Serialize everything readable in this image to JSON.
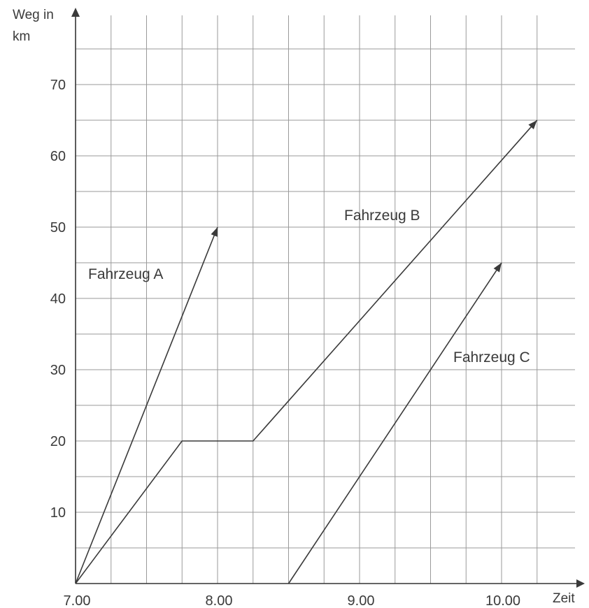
{
  "chart_data": {
    "type": "line",
    "ylabel_lines": [
      "Weg in",
      "km"
    ],
    "xlabel": "Zeit",
    "x_ticks": [
      {
        "value": 7,
        "label": "7.00"
      },
      {
        "value": 8,
        "label": "8.00"
      },
      {
        "value": 9,
        "label": "9.00"
      },
      {
        "value": 10,
        "label": "10.00"
      }
    ],
    "y_ticks": [
      {
        "value": 10,
        "label": "10"
      },
      {
        "value": 20,
        "label": "20"
      },
      {
        "value": 30,
        "label": "30"
      },
      {
        "value": 40,
        "label": "40"
      },
      {
        "value": 50,
        "label": "50"
      },
      {
        "value": 60,
        "label": "60"
      },
      {
        "value": 70,
        "label": "70"
      }
    ],
    "xlim": [
      7,
      10.5
    ],
    "ylim": [
      0,
      75
    ],
    "grid": true,
    "x_grid_step_hours": 0.25,
    "y_grid_step_km": 5,
    "series": [
      {
        "name": "Fahrzeug A",
        "x": [
          7,
          8
        ],
        "y": [
          0,
          50
        ],
        "arrow": true
      },
      {
        "name": "Fahrzeug B",
        "x": [
          7,
          7.75,
          8.25,
          10.25
        ],
        "y": [
          0,
          20,
          20,
          65
        ],
        "arrow": true
      },
      {
        "name": "Fahrzeug C",
        "x": [
          8.5,
          10
        ],
        "y": [
          0,
          45
        ],
        "arrow": true
      }
    ]
  }
}
